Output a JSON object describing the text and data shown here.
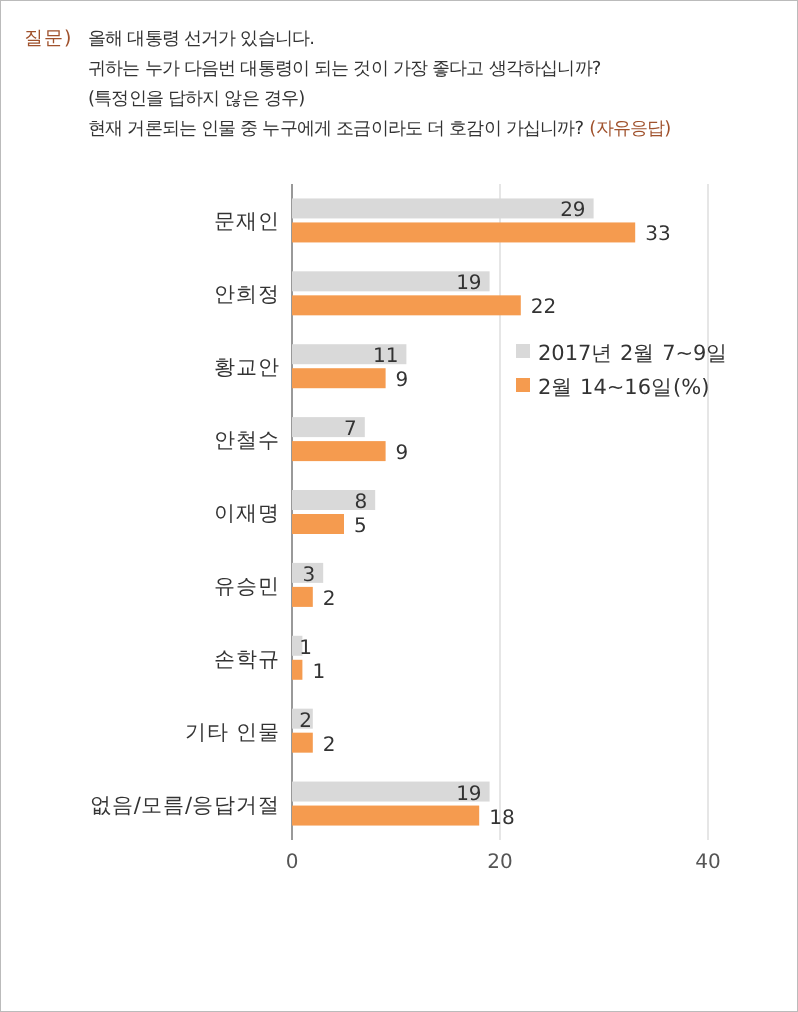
{
  "chart_data": {
    "type": "bar",
    "orientation": "horizontal",
    "title": "질문)",
    "annotations": [
      "올해 대통령 선거가 있습니다.",
      "귀하는 누가 다음번 대통령이 되는 것이 가장 좋다고 생각하십니까?",
      "(특정인을 답하지 않은 경우)",
      "현재 거론되는 인물 중 누구에게 조금이라도 더 호감이 가십니까?",
      "(자유응답)"
    ],
    "categories": [
      "문재인",
      "안희정",
      "황교안",
      "안철수",
      "이재명",
      "유승민",
      "손학규",
      "기타 인물",
      "없음/모름/응답거절"
    ],
    "series": [
      {
        "name": "2017년 2월 7~9일",
        "color": "#d9d9d9",
        "values": [
          29,
          19,
          11,
          7,
          8,
          3,
          1,
          2,
          19
        ]
      },
      {
        "name": "2월 14~16일(%)",
        "color": "#f59b4f",
        "values": [
          33,
          22,
          9,
          9,
          5,
          2,
          1,
          2,
          18
        ]
      }
    ],
    "xlim": [
      0,
      40
    ],
    "xticks": [
      0,
      20,
      40
    ],
    "grid": "x",
    "data_labels": true,
    "legend": "right"
  }
}
